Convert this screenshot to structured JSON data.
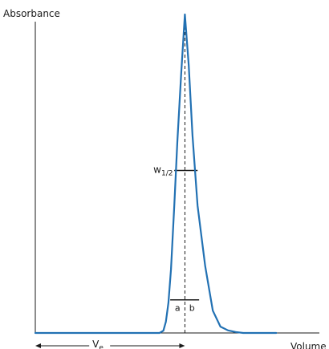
{
  "chart_data": {
    "type": "line",
    "title": "",
    "ylabel": "Absorbance",
    "xlabel": "Volume",
    "xlim": [
      0,
      100
    ],
    "ylim": [
      0,
      100
    ],
    "grid": false,
    "series": [
      {
        "color": "#2271b3",
        "x": [
          0,
          10,
          20,
          30,
          40,
          45,
          49,
          50.5,
          51.5,
          52.5,
          53.5,
          54.8,
          56,
          57.5,
          59,
          60.5,
          62,
          64,
          67,
          70,
          73,
          76,
          79,
          82,
          85,
          88,
          91,
          95
        ],
        "y": [
          0,
          0,
          0,
          0,
          0,
          0,
          0,
          0.7,
          3.5,
          9.5,
          20,
          40,
          60,
          81,
          100,
          84,
          62,
          40,
          21,
          7,
          2,
          0.8,
          0.3,
          0,
          0,
          0,
          0,
          0
        ]
      }
    ],
    "annotations": {
      "peak_x": 59,
      "half_width": {
        "label_main": "w",
        "label_sub": "1/2",
        "y": 51,
        "x_start": 54.8,
        "x_end": 64
      },
      "base_width": {
        "y": 10.4,
        "x_start": 53.2,
        "x_end": 64.6,
        "label_a": "a",
        "label_b": "b"
      },
      "ve": {
        "label_main": "V",
        "label_sub": "e",
        "x_start": 0,
        "x_end": 59
      }
    }
  }
}
